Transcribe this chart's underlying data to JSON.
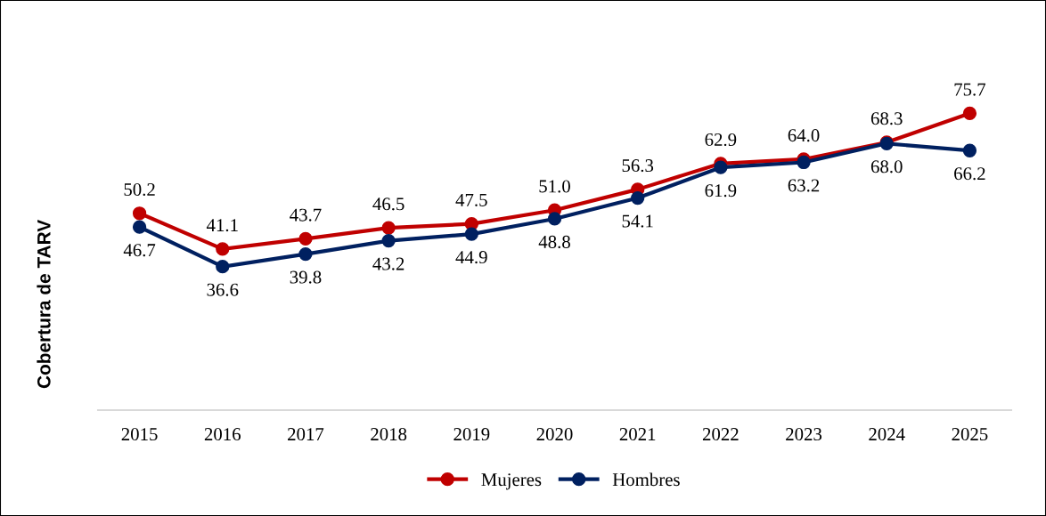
{
  "chart_data": {
    "type": "line",
    "ylabel": "Cobertura de TARV",
    "categories": [
      "2015",
      "2016",
      "2017",
      "2018",
      "2019",
      "2020",
      "2021",
      "2022",
      "2023",
      "2024",
      "2025"
    ],
    "series": [
      {
        "name": "Mujeres",
        "color": "#c00000",
        "values": [
          50.2,
          41.1,
          43.7,
          46.5,
          47.5,
          51.0,
          56.3,
          62.9,
          64.0,
          68.3,
          75.7
        ],
        "value_labels": [
          "50.2",
          "41.1",
          "43.7",
          "46.5",
          "47.5",
          "51.0",
          "56.3",
          "62.9",
          "64.0",
          "68.3",
          "75.7"
        ]
      },
      {
        "name": "Hombres",
        "color": "#002060",
        "values": [
          46.7,
          36.6,
          39.8,
          43.2,
          44.9,
          48.8,
          54.1,
          61.9,
          63.2,
          68.0,
          66.2
        ],
        "value_labels": [
          "46.7",
          "36.6",
          "39.8",
          "43.2",
          "44.9",
          "48.8",
          "54.1",
          "61.9",
          "63.2",
          "68.0",
          "66.2"
        ]
      }
    ],
    "tick_labels": "x",
    "grid": false,
    "legend": "bottom",
    "marker": "circle",
    "line_style": "solid"
  }
}
